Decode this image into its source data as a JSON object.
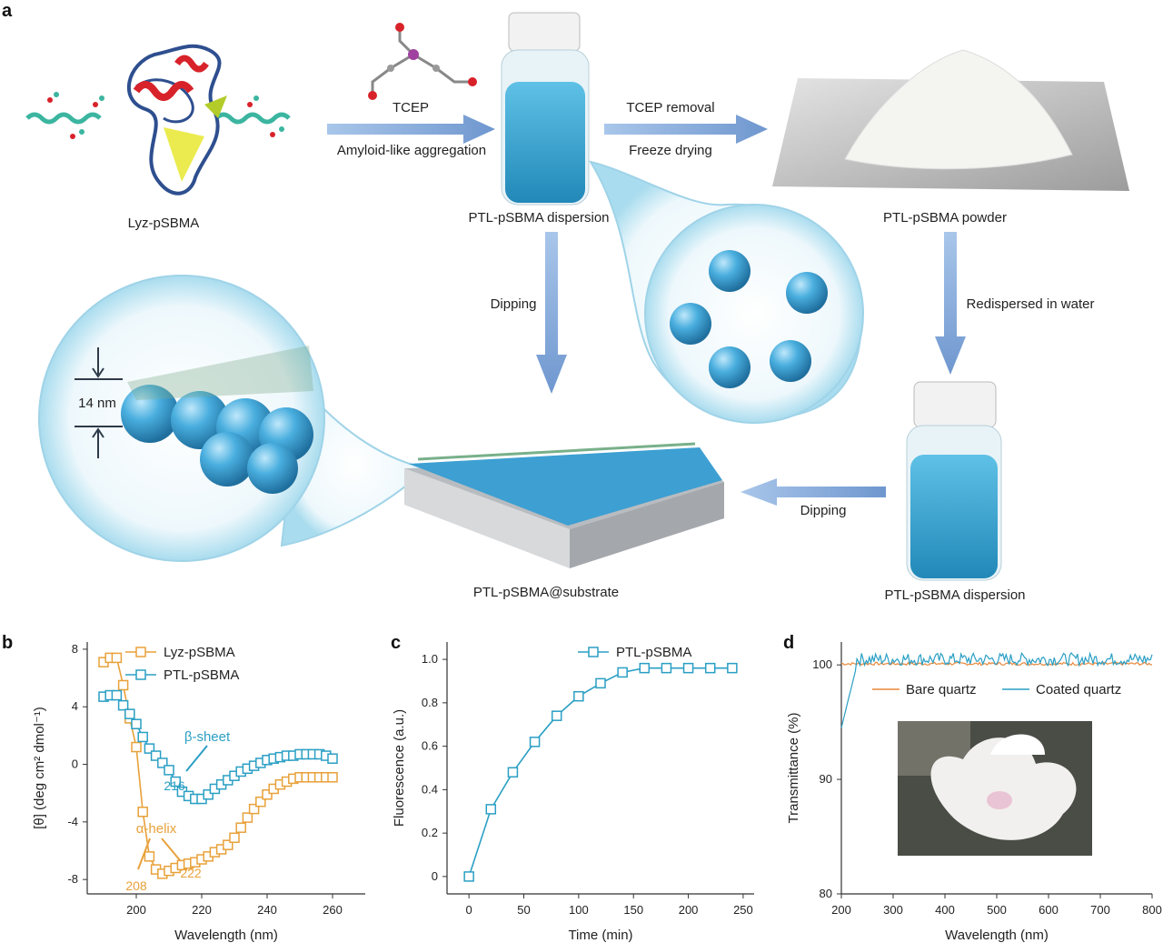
{
  "panel_a": {
    "letter": "a",
    "lyz_label": "Lyz-pSBMA",
    "tcep_label": "TCEP",
    "arrow1_bottom": "Amyloid-like aggregation",
    "dispersion_top_label": "PTL-pSBMA dispersion",
    "arrow2_top": "TCEP removal",
    "arrow2_bottom": "Freeze drying",
    "powder_label": "PTL-pSBMA powder",
    "dipping_down": "Dipping",
    "redispersed": "Redispersed in water",
    "thickness": "14 nm",
    "dipping_left": "Dipping",
    "substrate_label": "PTL-pSBMA@substrate",
    "dispersion_bottom_label": "PTL-pSBMA dispersion"
  },
  "panel_b": {
    "letter": "b",
    "annotations": {
      "beta": "β-sheet",
      "beta_pos": "216",
      "alpha": "α-helix",
      "alpha1": "208",
      "alpha2": "222"
    }
  },
  "panel_c": {
    "letter": "c"
  },
  "panel_d": {
    "letter": "d"
  },
  "colors": {
    "orange": "#e8a13a",
    "teal": "#2a9fc4",
    "arrow": "#8fb3de",
    "sphere": "#4aa9d8"
  },
  "chart_data": [
    {
      "id": "b",
      "type": "line",
      "xlabel": "Wavelength (nm)",
      "ylabel": "[θ] (deg cm² dmol⁻¹)",
      "xlim": [
        185,
        270
      ],
      "ylim": [
        -9,
        8.5
      ],
      "xticks": [
        200,
        220,
        240,
        260
      ],
      "yticks": [
        -8,
        -4,
        0,
        4,
        8
      ],
      "series": [
        {
          "name": "Lyz-pSBMA",
          "color": "#e8a13a",
          "x": [
            190,
            192,
            194,
            196,
            198,
            200,
            202,
            204,
            206,
            208,
            210,
            212,
            214,
            216,
            218,
            220,
            222,
            224,
            226,
            228,
            230,
            232,
            234,
            236,
            238,
            240,
            242,
            244,
            246,
            248,
            250,
            252,
            254,
            256,
            258,
            260
          ],
          "y": [
            7.1,
            7.4,
            7.4,
            5.5,
            3.2,
            1.2,
            -3.3,
            -6.4,
            -7.3,
            -7.6,
            -7.4,
            -7.2,
            -7.0,
            -6.9,
            -6.8,
            -6.6,
            -6.4,
            -6.1,
            -5.9,
            -5.6,
            -5.1,
            -4.4,
            -3.7,
            -3.1,
            -2.6,
            -2.1,
            -1.7,
            -1.4,
            -1.2,
            -1.0,
            -0.9,
            -0.9,
            -0.9,
            -0.9,
            -0.9,
            -0.9
          ]
        },
        {
          "name": "PTL-pSBMA",
          "color": "#2a9fc4",
          "x": [
            190,
            192,
            194,
            196,
            198,
            200,
            202,
            204,
            206,
            208,
            210,
            212,
            214,
            216,
            218,
            220,
            222,
            224,
            226,
            228,
            230,
            232,
            234,
            236,
            238,
            240,
            242,
            244,
            246,
            248,
            250,
            252,
            254,
            256,
            258,
            260
          ],
          "y": [
            4.7,
            4.8,
            4.8,
            4.1,
            3.5,
            2.8,
            1.9,
            1.1,
            0.6,
            0.1,
            -0.4,
            -1.2,
            -1.9,
            -2.2,
            -2.4,
            -2.4,
            -2.1,
            -1.7,
            -1.4,
            -1.1,
            -0.8,
            -0.5,
            -0.3,
            -0.1,
            0.1,
            0.3,
            0.4,
            0.5,
            0.6,
            0.6,
            0.7,
            0.7,
            0.7,
            0.7,
            0.6,
            0.4
          ]
        }
      ]
    },
    {
      "id": "c",
      "type": "line",
      "xlabel": "Time (min)",
      "ylabel": "Fluorescence (a.u.)",
      "xlim": [
        -20,
        260
      ],
      "ylim": [
        -0.08,
        1.08
      ],
      "xticks": [
        0,
        50,
        100,
        150,
        200,
        250
      ],
      "yticks": [
        0,
        0.2,
        0.4,
        0.6,
        0.8,
        1.0
      ],
      "ytick_labels": [
        "0",
        "0.2",
        "0.4",
        "0.6",
        "0.8",
        "1.0"
      ],
      "series": [
        {
          "name": "PTL-pSBMA",
          "color": "#2a9fc4",
          "x": [
            0,
            20,
            40,
            60,
            80,
            100,
            120,
            140,
            160,
            180,
            200,
            220,
            240
          ],
          "y": [
            0,
            0.31,
            0.48,
            0.62,
            0.74,
            0.83,
            0.89,
            0.94,
            0.96,
            0.96,
            0.96,
            0.96,
            0.96
          ]
        }
      ]
    },
    {
      "id": "d",
      "type": "line",
      "xlabel": "Wavelength (nm)",
      "ylabel": "Transmittance (%)",
      "xlim": [
        200,
        800
      ],
      "ylim": [
        80,
        102
      ],
      "xticks": [
        200,
        300,
        400,
        500,
        600,
        700,
        800
      ],
      "yticks": [
        80,
        90,
        100
      ],
      "series": [
        {
          "name": "Bare quartz",
          "color": "#e8883a",
          "baseline": 100.1
        },
        {
          "name": "Coated quartz",
          "color": "#2a9fc4",
          "baseline": 100.5
        }
      ]
    }
  ]
}
